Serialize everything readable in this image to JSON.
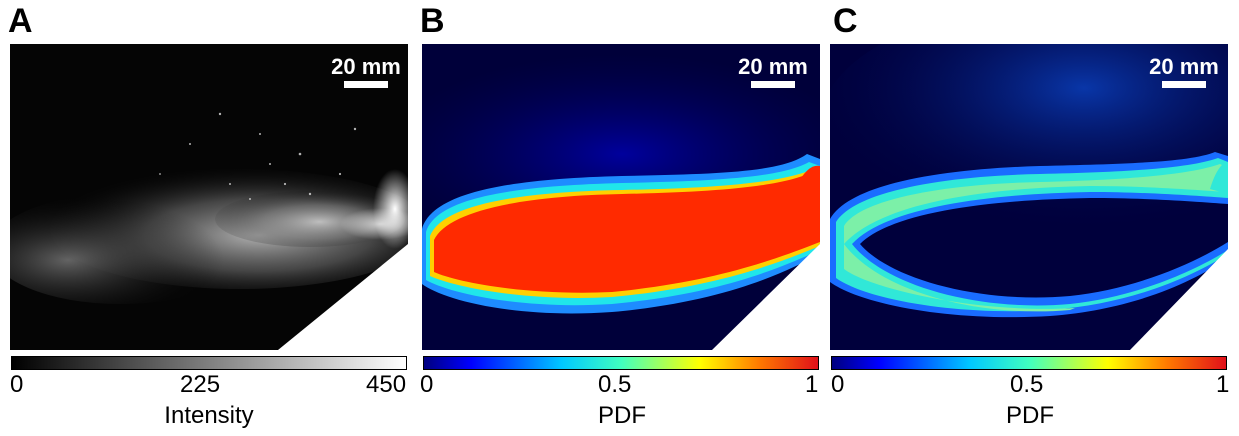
{
  "panels": [
    {
      "letter": "A",
      "scale_bar": "20 mm",
      "colorbar": {
        "ticks": [
          "0",
          "225",
          "450"
        ],
        "label": "Intensity",
        "colormap": "gray"
      }
    },
    {
      "letter": "B",
      "scale_bar": "20 mm",
      "colorbar": {
        "ticks": [
          "0",
          "0.5",
          "1"
        ],
        "label": "PDF",
        "colormap": "jet"
      }
    },
    {
      "letter": "C",
      "scale_bar": "20 mm",
      "colorbar": {
        "ticks": [
          "0",
          "0.5",
          "1"
        ],
        "label": "PDF",
        "colormap": "jet"
      }
    }
  ],
  "colors": {
    "background": "#000000",
    "jet_stops": [
      "#00007f",
      "#0000ff",
      "#00ffff",
      "#ffff00",
      "#ff0000",
      "#e8001a"
    ]
  }
}
